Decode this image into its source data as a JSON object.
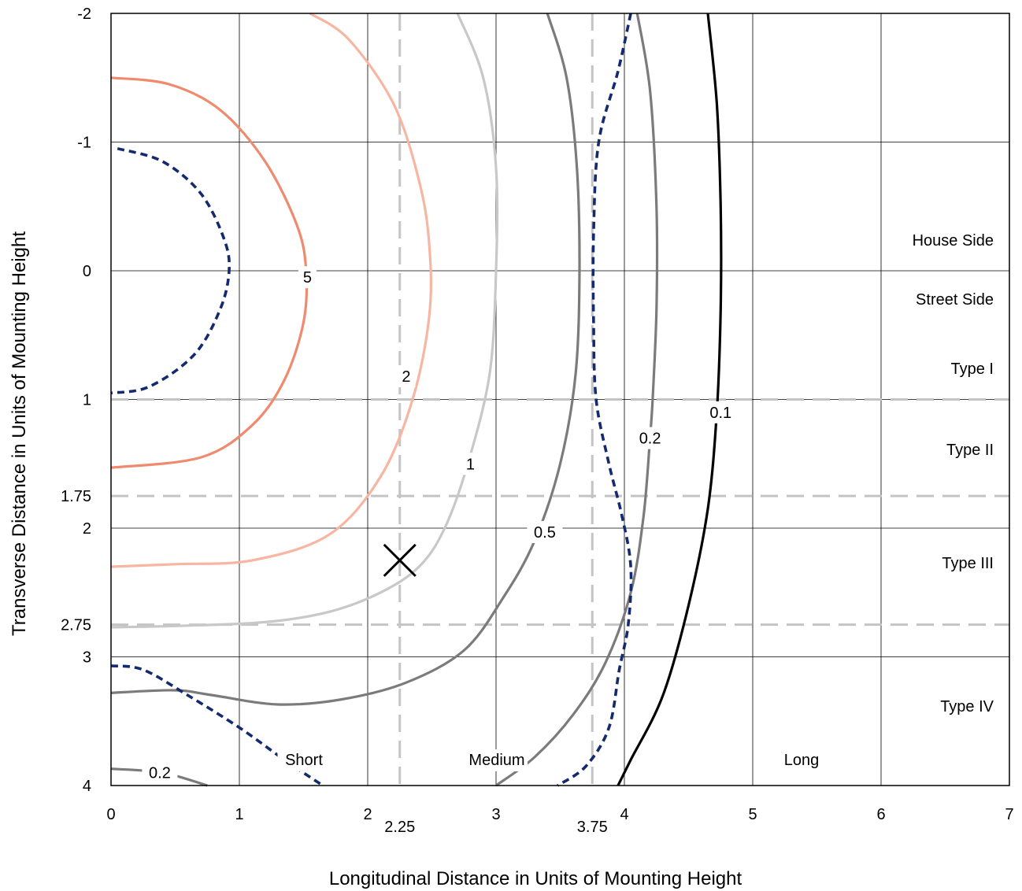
{
  "chart_data": {
    "type": "contour",
    "xlabel": "Longitudinal Distance in Units of Mounting Height",
    "ylabel": "Transverse Distance in Units of Mounting Height",
    "xlim": [
      0,
      7
    ],
    "ylim": [
      -2,
      4
    ],
    "y_inverted": true,
    "grid": true,
    "x_ticks": [
      "0",
      "1",
      "2",
      "3",
      "4",
      "5",
      "6",
      "7"
    ],
    "y_ticks": [
      "-2",
      "-1",
      "0",
      "1",
      "2",
      "3",
      "4"
    ],
    "reference_lines": {
      "vertical": [
        {
          "value": 2.25,
          "label": "2.25"
        },
        {
          "value": 3.75,
          "label": "3.75"
        }
      ],
      "horizontal": [
        {
          "value": 1,
          "label": ""
        },
        {
          "value": 1.75,
          "label": "1.75"
        },
        {
          "value": 2.75,
          "label": "2.75"
        }
      ]
    },
    "marker": {
      "symbol": "X",
      "x": 2.25,
      "y": 2.25
    },
    "region_labels": {
      "house_side": "House Side",
      "street_side": "Street Side",
      "type_i": "Type I",
      "type_ii": "Type II",
      "type_iii": "Type III",
      "type_iv": "Type IV",
      "short": "Short",
      "medium": "Medium",
      "long": "Long"
    },
    "contours": [
      {
        "level": "5",
        "color": "#f08a6e",
        "style": "solid",
        "points": [
          [
            0,
            -1.5
          ],
          [
            0.45,
            -1.45
          ],
          [
            0.85,
            -1.25
          ],
          [
            1.2,
            -0.85
          ],
          [
            1.45,
            -0.35
          ],
          [
            1.52,
            0
          ],
          [
            1.5,
            0.4
          ],
          [
            1.35,
            0.85
          ],
          [
            1.1,
            1.2
          ],
          [
            0.7,
            1.45
          ],
          [
            0,
            1.53
          ]
        ],
        "label": {
          "text": "5",
          "x": 1.53,
          "y": 0.05
        }
      },
      {
        "level": "2",
        "color": "#f7b6a2",
        "style": "solid",
        "points": [
          [
            1.55,
            -2
          ],
          [
            1.85,
            -1.8
          ],
          [
            2.2,
            -1.3
          ],
          [
            2.4,
            -0.7
          ],
          [
            2.48,
            -0.2
          ],
          [
            2.48,
            0.35
          ],
          [
            2.35,
            1.0
          ],
          [
            2.1,
            1.6
          ],
          [
            1.7,
            2.05
          ],
          [
            1.1,
            2.25
          ],
          [
            0.5,
            2.28
          ],
          [
            0,
            2.3
          ]
        ],
        "label": {
          "text": "2",
          "x": 2.3,
          "y": 0.82
        }
      },
      {
        "level": "1",
        "color": "#c8c8c8",
        "style": "solid",
        "points": [
          [
            2.7,
            -2
          ],
          [
            2.9,
            -1.5
          ],
          [
            3.0,
            -0.8
          ],
          [
            3.0,
            0
          ],
          [
            2.95,
            0.8
          ],
          [
            2.78,
            1.5
          ],
          [
            2.6,
            2.0
          ],
          [
            2.4,
            2.3
          ],
          [
            2.1,
            2.5
          ],
          [
            1.7,
            2.65
          ],
          [
            1.2,
            2.73
          ],
          [
            0.5,
            2.76
          ],
          [
            0,
            2.77
          ]
        ],
        "label": {
          "text": "1",
          "x": 2.8,
          "y": 1.5
        }
      },
      {
        "level": "0.5",
        "color": "#7b7b7b",
        "style": "solid",
        "points": [
          [
            3.4,
            -2
          ],
          [
            3.55,
            -1.5
          ],
          [
            3.63,
            -0.8
          ],
          [
            3.65,
            0
          ],
          [
            3.62,
            0.8
          ],
          [
            3.5,
            1.5
          ],
          [
            3.3,
            2.1
          ],
          [
            3.05,
            2.55
          ],
          [
            2.75,
            2.95
          ],
          [
            2.3,
            3.2
          ],
          [
            1.8,
            3.33
          ],
          [
            1.3,
            3.37
          ],
          [
            0.8,
            3.3
          ],
          [
            0.5,
            3.26
          ],
          [
            0,
            3.28
          ]
        ],
        "label": {
          "text": "0.5",
          "x": 3.38,
          "y": 2.03
        }
      },
      {
        "level": "0.5",
        "color": "#7b7b7b",
        "style": "solid",
        "points": [
          [
            3.0,
            4.0
          ],
          [
            3.3,
            3.78
          ],
          [
            3.6,
            3.45
          ],
          [
            3.85,
            3.05
          ],
          [
            4.05,
            2.5
          ],
          [
            4.15,
            1.9
          ],
          [
            4.2,
            1.3
          ]
        ],
        "label": null
      },
      {
        "level": "0.2",
        "color": "#7b7b7b",
        "style": "solid",
        "points": [
          [
            4.1,
            -2
          ],
          [
            4.2,
            -1.4
          ],
          [
            4.25,
            -0.5
          ],
          [
            4.25,
            0.3
          ],
          [
            4.22,
            1.0
          ],
          [
            4.2,
            1.3
          ]
        ],
        "label": {
          "text": "0.2",
          "x": 4.2,
          "y": 1.3
        }
      },
      {
        "level": "0.2",
        "color": "#7b7b7b",
        "style": "solid",
        "points": [
          [
            0,
            3.87
          ],
          [
            0.4,
            3.9
          ],
          [
            0.75,
            4.0
          ]
        ],
        "label": {
          "text": "0.2",
          "x": 0.38,
          "y": 3.9
        }
      },
      {
        "level": "0.1",
        "color": "#000000",
        "style": "solid",
        "points": [
          [
            4.65,
            -2
          ],
          [
            4.72,
            -1.3
          ],
          [
            4.75,
            -0.5
          ],
          [
            4.75,
            0.3
          ],
          [
            4.72,
            1.1
          ],
          [
            4.65,
            1.85
          ],
          [
            4.5,
            2.6
          ],
          [
            4.3,
            3.3
          ],
          [
            4.05,
            3.8
          ],
          [
            3.95,
            4.0
          ]
        ],
        "label": {
          "text": "0.1",
          "x": 4.75,
          "y": 1.1
        }
      },
      {
        "level": "",
        "color": "#142a6e",
        "style": "dashed",
        "points": [
          [
            0.05,
            -0.95
          ],
          [
            0.4,
            -0.85
          ],
          [
            0.7,
            -0.6
          ],
          [
            0.88,
            -0.25
          ],
          [
            0.92,
            0
          ],
          [
            0.85,
            0.3
          ],
          [
            0.65,
            0.65
          ],
          [
            0.3,
            0.9
          ],
          [
            0,
            0.95
          ]
        ],
        "label": null
      },
      {
        "level": "",
        "color": "#142a6e",
        "style": "dashed",
        "points": [
          [
            4.05,
            -2
          ],
          [
            3.95,
            -1.55
          ],
          [
            3.8,
            -1.0
          ],
          [
            3.76,
            -0.3
          ],
          [
            3.76,
            0.4
          ],
          [
            3.78,
            1.0
          ],
          [
            3.88,
            1.5
          ],
          [
            3.98,
            1.9
          ],
          [
            4.05,
            2.3
          ],
          [
            4.03,
            2.75
          ],
          [
            3.96,
            3.1
          ],
          [
            3.88,
            3.55
          ],
          [
            3.7,
            3.85
          ],
          [
            3.48,
            4.0
          ]
        ],
        "label": null
      },
      {
        "level": "",
        "color": "#142a6e",
        "style": "dashed",
        "points": [
          [
            0,
            3.07
          ],
          [
            0.25,
            3.1
          ],
          [
            0.6,
            3.3
          ],
          [
            1.0,
            3.55
          ],
          [
            1.35,
            3.8
          ],
          [
            1.65,
            4.0
          ]
        ],
        "label": null
      }
    ]
  }
}
